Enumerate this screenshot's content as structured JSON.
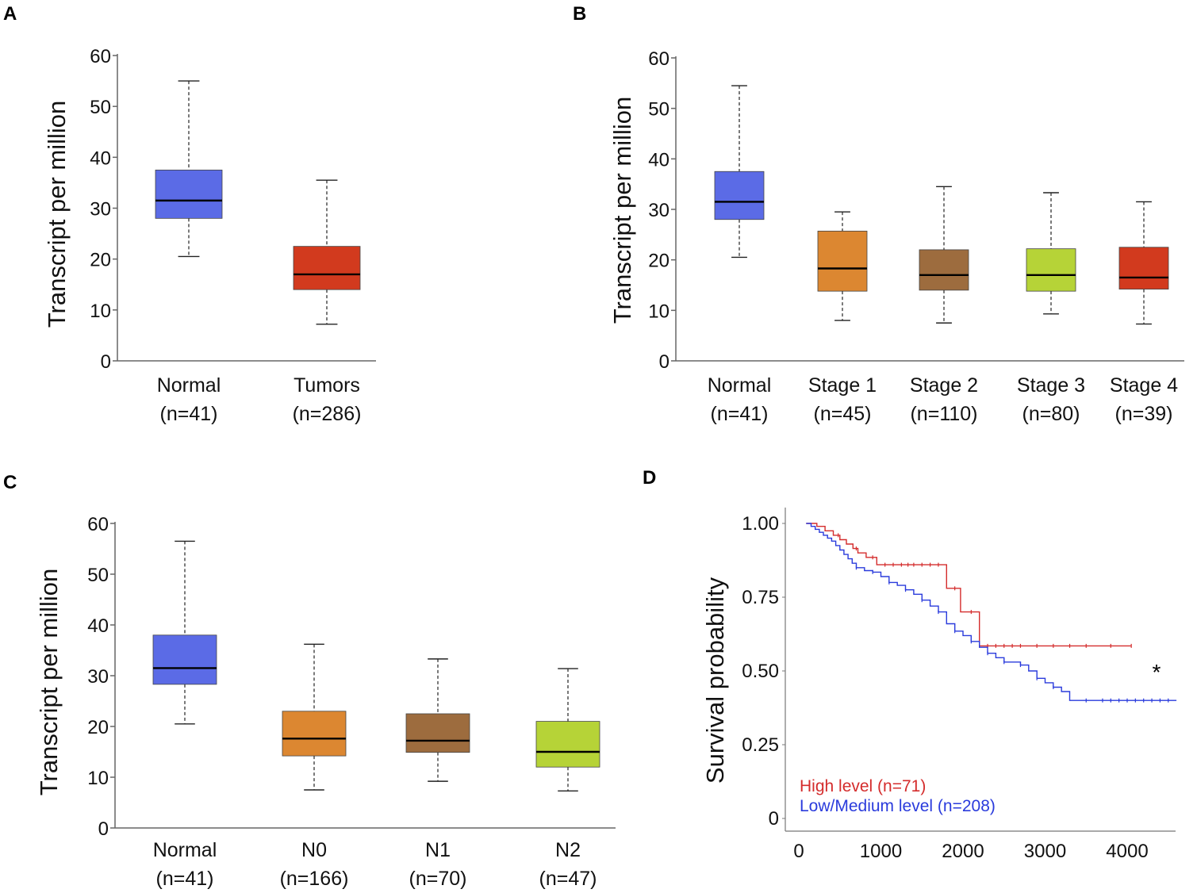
{
  "colors": {
    "normal": "#5b6be6",
    "tumor": "#d23a1e",
    "stage1": "#dc8731",
    "stage2": "#9d6c3e",
    "stage3": "#b6d337",
    "stage4": "#d23a1e",
    "high": "#d42c2c",
    "low": "#2a3bdc"
  },
  "panels": {
    "A": {
      "letter": "A"
    },
    "B": {
      "letter": "B"
    },
    "C": {
      "letter": "C"
    },
    "D": {
      "letter": "D"
    }
  },
  "chart_data": [
    {
      "id": "A",
      "type": "box",
      "ylabel": "Transcript per million",
      "ylim": [
        0,
        60
      ],
      "yticks": [
        "0",
        "10",
        "20",
        "30",
        "40",
        "50",
        "60"
      ],
      "categories": [
        {
          "line1": "Normal",
          "line2": "(n=41)",
          "color_key": "normal",
          "min": 20.5,
          "q1": 28,
          "median": 31.5,
          "q3": 37.5,
          "max": 55
        },
        {
          "line1": "Tumors",
          "line2": "(n=286)",
          "color_key": "tumor",
          "min": 7.2,
          "q1": 14,
          "median": 17,
          "q3": 22.5,
          "max": 35.5
        }
      ]
    },
    {
      "id": "B",
      "type": "box",
      "ylabel": "Transcript per million",
      "ylim": [
        0,
        60
      ],
      "yticks": [
        "0",
        "10",
        "20",
        "30",
        "40",
        "50",
        "60"
      ],
      "categories": [
        {
          "line1": "Normal",
          "line2": "(n=41)",
          "color_key": "normal",
          "min": 20.5,
          "q1": 28,
          "median": 31.5,
          "q3": 37.5,
          "max": 54.5
        },
        {
          "line1": "Stage 1",
          "line2": "(n=45)",
          "color_key": "stage1",
          "min": 8,
          "q1": 13.8,
          "median": 18.3,
          "q3": 25.7,
          "max": 29.5
        },
        {
          "line1": "Stage 2",
          "line2": "(n=110)",
          "color_key": "stage2",
          "min": 7.5,
          "q1": 14,
          "median": 17,
          "q3": 22,
          "max": 34.5
        },
        {
          "line1": "Stage 3",
          "line2": "(n=80)",
          "color_key": "stage3",
          "min": 9.3,
          "q1": 13.8,
          "median": 17,
          "q3": 22.2,
          "max": 33.3
        },
        {
          "line1": "Stage 4",
          "line2": "(n=39)",
          "color_key": "stage4",
          "min": 7.3,
          "q1": 14.2,
          "median": 16.5,
          "q3": 22.5,
          "max": 31.5
        }
      ]
    },
    {
      "id": "C",
      "type": "box",
      "ylabel": "Transcript per million",
      "ylim": [
        0,
        60
      ],
      "yticks": [
        "0",
        "10",
        "20",
        "30",
        "40",
        "50",
        "60"
      ],
      "categories": [
        {
          "line1": "Normal",
          "line2": "(n=41)",
          "color_key": "normal",
          "min": 20.5,
          "q1": 28.3,
          "median": 31.5,
          "q3": 38,
          "max": 56.5
        },
        {
          "line1": "N0",
          "line2": "(n=166)",
          "color_key": "stage1",
          "min": 7.5,
          "q1": 14.2,
          "median": 17.6,
          "q3": 23,
          "max": 36.2
        },
        {
          "line1": "N1",
          "line2": "(n=70)",
          "color_key": "stage2",
          "min": 9.2,
          "q1": 14.9,
          "median": 17.2,
          "q3": 22.5,
          "max": 33.3
        },
        {
          "line1": "N2",
          "line2": "(n=47)",
          "color_key": "stage3",
          "min": 7.3,
          "q1": 12,
          "median": 15,
          "q3": 21,
          "max": 31.4
        }
      ]
    },
    {
      "id": "D",
      "type": "line",
      "subtype": "kaplan-meier",
      "ylabel": "Survival probability",
      "xlim": [
        0,
        4600
      ],
      "ylim": [
        0,
        1.0
      ],
      "xticks": [
        {
          "value": 0,
          "label": "0"
        },
        {
          "value": 1000,
          "label": "1000"
        },
        {
          "value": 2000,
          "label": "2000"
        },
        {
          "value": 3000,
          "label": "3000"
        },
        {
          "value": 4000,
          "label": "4000"
        }
      ],
      "yticks": [
        {
          "value": 0,
          "label": "0"
        },
        {
          "value": 0.25,
          "label": "0.25"
        },
        {
          "value": 0.5,
          "label": "0.50"
        },
        {
          "value": 0.75,
          "label": "0.75"
        },
        {
          "value": 1.0,
          "label": "1.00"
        }
      ],
      "significance": "*",
      "series": [
        {
          "name": "High level (n=71)",
          "color_key": "high",
          "points": [
            [
              90,
              1.0
            ],
            [
              200,
              1.0
            ],
            [
              220,
              0.99
            ],
            [
              300,
              0.99
            ],
            [
              320,
              0.975
            ],
            [
              400,
              0.975
            ],
            [
              420,
              0.96
            ],
            [
              480,
              0.96
            ],
            [
              500,
              0.945
            ],
            [
              560,
              0.945
            ],
            [
              580,
              0.93
            ],
            [
              640,
              0.93
            ],
            [
              660,
              0.915
            ],
            [
              700,
              0.915
            ],
            [
              720,
              0.9
            ],
            [
              800,
              0.9
            ],
            [
              820,
              0.885
            ],
            [
              930,
              0.885
            ],
            [
              950,
              0.86
            ],
            [
              1780,
              0.86
            ],
            [
              1800,
              0.78
            ],
            [
              1950,
              0.78
            ],
            [
              1970,
              0.7
            ],
            [
              2180,
              0.7
            ],
            [
              2200,
              0.585
            ],
            [
              4050,
              0.585
            ]
          ],
          "censors": [
            480,
            700,
            900,
            1050,
            1150,
            1250,
            1330,
            1400,
            1500,
            1600,
            1700,
            1900,
            2100,
            2300,
            2400,
            2500,
            2600,
            2700,
            2900,
            3100,
            3300,
            3500,
            3800,
            4050
          ]
        },
        {
          "name": "Low/Medium level (n=208)",
          "color_key": "low",
          "points": [
            [
              90,
              1.0
            ],
            [
              150,
              0.99
            ],
            [
              200,
              0.98
            ],
            [
              250,
              0.97
            ],
            [
              300,
              0.96
            ],
            [
              350,
              0.95
            ],
            [
              400,
              0.94
            ],
            [
              450,
              0.925
            ],
            [
              500,
              0.91
            ],
            [
              550,
              0.895
            ],
            [
              600,
              0.88
            ],
            [
              650,
              0.865
            ],
            [
              700,
              0.85
            ],
            [
              800,
              0.84
            ],
            [
              900,
              0.835
            ],
            [
              1000,
              0.82
            ],
            [
              1100,
              0.8
            ],
            [
              1200,
              0.79
            ],
            [
              1300,
              0.775
            ],
            [
              1400,
              0.76
            ],
            [
              1500,
              0.74
            ],
            [
              1600,
              0.72
            ],
            [
              1700,
              0.7
            ],
            [
              1800,
              0.66
            ],
            [
              1900,
              0.635
            ],
            [
              2000,
              0.62
            ],
            [
              2100,
              0.6
            ],
            [
              2200,
              0.58
            ],
            [
              2300,
              0.56
            ],
            [
              2400,
              0.545
            ],
            [
              2500,
              0.53
            ],
            [
              2700,
              0.52
            ],
            [
              2800,
              0.5
            ],
            [
              2900,
              0.475
            ],
            [
              3000,
              0.46
            ],
            [
              3100,
              0.445
            ],
            [
              3200,
              0.43
            ],
            [
              3300,
              0.4
            ],
            [
              4600,
              0.4
            ]
          ],
          "censors": [
            700,
            900,
            1100,
            1300,
            1500,
            1700,
            1900,
            2100,
            2300,
            2500,
            2700,
            2900,
            3100,
            3500,
            3700,
            3800,
            3900,
            4000,
            4100,
            4200,
            4300,
            4400,
            4500
          ]
        }
      ]
    }
  ]
}
